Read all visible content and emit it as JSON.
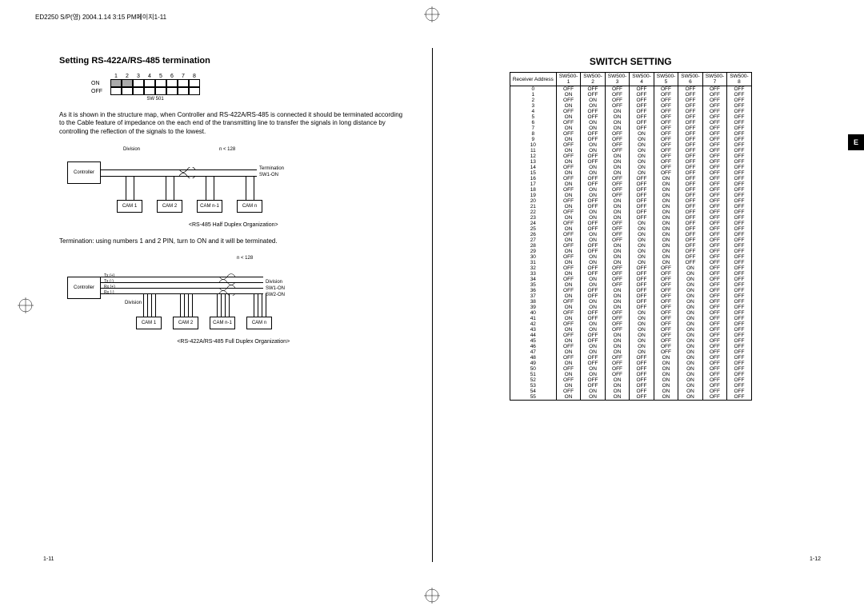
{
  "header_info": "ED2250 S/P(영)  2004.1.14 3:15 PM페이지1-11",
  "side_tab": "E",
  "left": {
    "title": "Setting RS-422A/RS-485 termination",
    "dip": {
      "numbers": [
        "1",
        "2",
        "3",
        "4",
        "5",
        "6",
        "7",
        "8"
      ],
      "on_label": "ON",
      "off_label": "OFF",
      "caption": "SW 501",
      "shaded_on": [
        true,
        true,
        false,
        false,
        false,
        false,
        false,
        false
      ]
    },
    "body": "As it is shown in the structure map, when Controller and RS-422A/RS-485 is connected it should be terminated according to the Cable feature of impedance on the each end of the transmitting line to transfer the signals in long distance by controlling the reflection of the signals to the lowest.",
    "diag1": {
      "controller": "Controller",
      "division": "Division",
      "n128": "n < 128",
      "termination": "Termination",
      "sw1on": "SW1-ON",
      "cams": [
        "CAM 1",
        "CAM 2",
        "CAM n-1",
        "CAM n"
      ],
      "caption": "<RS-485 Half Duplex Organization>"
    },
    "term_note": "Termination: using numbers 1 and 2 PIN, turn to ON and it will be terminated.",
    "diag2": {
      "controller": "Controller",
      "n128": "n < 128",
      "tx_p": "Tx (+)",
      "tx_m": "Tx (-)",
      "rx_p": "Rx (+)",
      "rx_m": "Rx (-)",
      "division": "Division",
      "sw1on": "SW1-ON",
      "sw2on": "SW2-ON",
      "cams": [
        "CAM 1",
        "CAM 2",
        "CAM n-1",
        "CAM n"
      ],
      "caption": "<RS-422A/RS-485 Full Duplex Organization>"
    },
    "page_num": "1-11"
  },
  "right": {
    "title": "SWITCH SETTING",
    "page_num": "1-12",
    "headers": [
      "Receiver Address",
      "SW500-1",
      "SW500-2",
      "SW500-3",
      "SW500-4",
      "SW500-5",
      "SW500-6",
      "SW500-7",
      "SW500-8"
    ],
    "rows": [
      [
        "0",
        "OFF",
        "OFF",
        "OFF",
        "OFF",
        "OFF",
        "OFF",
        "OFF",
        "OFF"
      ],
      [
        "1",
        "ON",
        "OFF",
        "OFF",
        "OFF",
        "OFF",
        "OFF",
        "OFF",
        "OFF"
      ],
      [
        "2",
        "OFF",
        "ON",
        "OFF",
        "OFF",
        "OFF",
        "OFF",
        "OFF",
        "OFF"
      ],
      [
        "3",
        "ON",
        "ON",
        "OFF",
        "OFF",
        "OFF",
        "OFF",
        "OFF",
        "OFF"
      ],
      [
        "4",
        "OFF",
        "OFF",
        "ON",
        "OFF",
        "OFF",
        "OFF",
        "OFF",
        "OFF"
      ],
      [
        "5",
        "ON",
        "OFF",
        "ON",
        "OFF",
        "OFF",
        "OFF",
        "OFF",
        "OFF"
      ],
      [
        "6",
        "OFF",
        "ON",
        "ON",
        "OFF",
        "OFF",
        "OFF",
        "OFF",
        "OFF"
      ],
      [
        "7",
        "ON",
        "ON",
        "ON",
        "OFF",
        "OFF",
        "OFF",
        "OFF",
        "OFF"
      ],
      [
        "8",
        "OFF",
        "OFF",
        "OFF",
        "ON",
        "OFF",
        "OFF",
        "OFF",
        "OFF"
      ],
      [
        "9",
        "ON",
        "OFF",
        "OFF",
        "ON",
        "OFF",
        "OFF",
        "OFF",
        "OFF"
      ],
      [
        "10",
        "OFF",
        "ON",
        "OFF",
        "ON",
        "OFF",
        "OFF",
        "OFF",
        "OFF"
      ],
      [
        "11",
        "ON",
        "ON",
        "OFF",
        "ON",
        "OFF",
        "OFF",
        "OFF",
        "OFF"
      ],
      [
        "12",
        "OFF",
        "OFF",
        "ON",
        "ON",
        "OFF",
        "OFF",
        "OFF",
        "OFF"
      ],
      [
        "13",
        "ON",
        "OFF",
        "ON",
        "ON",
        "OFF",
        "OFF",
        "OFF",
        "OFF"
      ],
      [
        "14",
        "OFF",
        "ON",
        "ON",
        "ON",
        "OFF",
        "OFF",
        "OFF",
        "OFF"
      ],
      [
        "15",
        "ON",
        "ON",
        "ON",
        "ON",
        "OFF",
        "OFF",
        "OFF",
        "OFF"
      ],
      [
        "16",
        "OFF",
        "OFF",
        "OFF",
        "OFF",
        "ON",
        "OFF",
        "OFF",
        "OFF"
      ],
      [
        "17",
        "ON",
        "OFF",
        "OFF",
        "OFF",
        "ON",
        "OFF",
        "OFF",
        "OFF"
      ],
      [
        "18",
        "OFF",
        "ON",
        "OFF",
        "OFF",
        "ON",
        "OFF",
        "OFF",
        "OFF"
      ],
      [
        "19",
        "ON",
        "ON",
        "OFF",
        "OFF",
        "ON",
        "OFF",
        "OFF",
        "OFF"
      ],
      [
        "20",
        "OFF",
        "OFF",
        "ON",
        "OFF",
        "ON",
        "OFF",
        "OFF",
        "OFF"
      ],
      [
        "21",
        "ON",
        "OFF",
        "ON",
        "OFF",
        "ON",
        "OFF",
        "OFF",
        "OFF"
      ],
      [
        "22",
        "OFF",
        "ON",
        "ON",
        "OFF",
        "ON",
        "OFF",
        "OFF",
        "OFF"
      ],
      [
        "23",
        "ON",
        "ON",
        "ON",
        "OFF",
        "ON",
        "OFF",
        "OFF",
        "OFF"
      ],
      [
        "24",
        "OFF",
        "OFF",
        "OFF",
        "ON",
        "ON",
        "OFF",
        "OFF",
        "OFF"
      ],
      [
        "25",
        "ON",
        "OFF",
        "OFF",
        "ON",
        "ON",
        "OFF",
        "OFF",
        "OFF"
      ],
      [
        "26",
        "OFF",
        "ON",
        "OFF",
        "ON",
        "ON",
        "OFF",
        "OFF",
        "OFF"
      ],
      [
        "27",
        "ON",
        "ON",
        "OFF",
        "ON",
        "ON",
        "OFF",
        "OFF",
        "OFF"
      ],
      [
        "28",
        "OFF",
        "OFF",
        "ON",
        "ON",
        "ON",
        "OFF",
        "OFF",
        "OFF"
      ],
      [
        "29",
        "ON",
        "OFF",
        "ON",
        "ON",
        "ON",
        "OFF",
        "OFF",
        "OFF"
      ],
      [
        "30",
        "OFF",
        "ON",
        "ON",
        "ON",
        "ON",
        "OFF",
        "OFF",
        "OFF"
      ],
      [
        "31",
        "ON",
        "ON",
        "ON",
        "ON",
        "ON",
        "OFF",
        "OFF",
        "OFF"
      ],
      [
        "32",
        "OFF",
        "OFF",
        "OFF",
        "OFF",
        "OFF",
        "ON",
        "OFF",
        "OFF"
      ],
      [
        "33",
        "ON",
        "OFF",
        "OFF",
        "OFF",
        "OFF",
        "ON",
        "OFF",
        "OFF"
      ],
      [
        "34",
        "OFF",
        "ON",
        "OFF",
        "OFF",
        "OFF",
        "ON",
        "OFF",
        "OFF"
      ],
      [
        "35",
        "ON",
        "ON",
        "OFF",
        "OFF",
        "OFF",
        "ON",
        "OFF",
        "OFF"
      ],
      [
        "36",
        "OFF",
        "OFF",
        "ON",
        "OFF",
        "OFF",
        "ON",
        "OFF",
        "OFF"
      ],
      [
        "37",
        "ON",
        "OFF",
        "ON",
        "OFF",
        "OFF",
        "ON",
        "OFF",
        "OFF"
      ],
      [
        "38",
        "OFF",
        "ON",
        "ON",
        "OFF",
        "OFF",
        "ON",
        "OFF",
        "OFF"
      ],
      [
        "39",
        "ON",
        "ON",
        "ON",
        "OFF",
        "OFF",
        "ON",
        "OFF",
        "OFF"
      ],
      [
        "40",
        "OFF",
        "OFF",
        "OFF",
        "ON",
        "OFF",
        "ON",
        "OFF",
        "OFF"
      ],
      [
        "41",
        "ON",
        "OFF",
        "OFF",
        "ON",
        "OFF",
        "ON",
        "OFF",
        "OFF"
      ],
      [
        "42",
        "OFF",
        "ON",
        "OFF",
        "ON",
        "OFF",
        "ON",
        "OFF",
        "OFF"
      ],
      [
        "43",
        "ON",
        "ON",
        "OFF",
        "ON",
        "OFF",
        "ON",
        "OFF",
        "OFF"
      ],
      [
        "44",
        "OFF",
        "OFF",
        "ON",
        "ON",
        "OFF",
        "ON",
        "OFF",
        "OFF"
      ],
      [
        "45",
        "ON",
        "OFF",
        "ON",
        "ON",
        "OFF",
        "ON",
        "OFF",
        "OFF"
      ],
      [
        "46",
        "OFF",
        "ON",
        "ON",
        "ON",
        "OFF",
        "ON",
        "OFF",
        "OFF"
      ],
      [
        "47",
        "ON",
        "ON",
        "ON",
        "ON",
        "OFF",
        "ON",
        "OFF",
        "OFF"
      ],
      [
        "48",
        "OFF",
        "OFF",
        "OFF",
        "OFF",
        "ON",
        "ON",
        "OFF",
        "OFF"
      ],
      [
        "49",
        "ON",
        "OFF",
        "OFF",
        "OFF",
        "ON",
        "ON",
        "OFF",
        "OFF"
      ],
      [
        "50",
        "OFF",
        "ON",
        "OFF",
        "OFF",
        "ON",
        "ON",
        "OFF",
        "OFF"
      ],
      [
        "51",
        "ON",
        "ON",
        "OFF",
        "OFF",
        "ON",
        "ON",
        "OFF",
        "OFF"
      ],
      [
        "52",
        "OFF",
        "OFF",
        "ON",
        "OFF",
        "ON",
        "ON",
        "OFF",
        "OFF"
      ],
      [
        "53",
        "ON",
        "OFF",
        "ON",
        "OFF",
        "ON",
        "ON",
        "OFF",
        "OFF"
      ],
      [
        "54",
        "OFF",
        "ON",
        "ON",
        "OFF",
        "ON",
        "ON",
        "OFF",
        "OFF"
      ],
      [
        "55",
        "ON",
        "ON",
        "ON",
        "OFF",
        "ON",
        "ON",
        "OFF",
        "OFF"
      ]
    ]
  }
}
